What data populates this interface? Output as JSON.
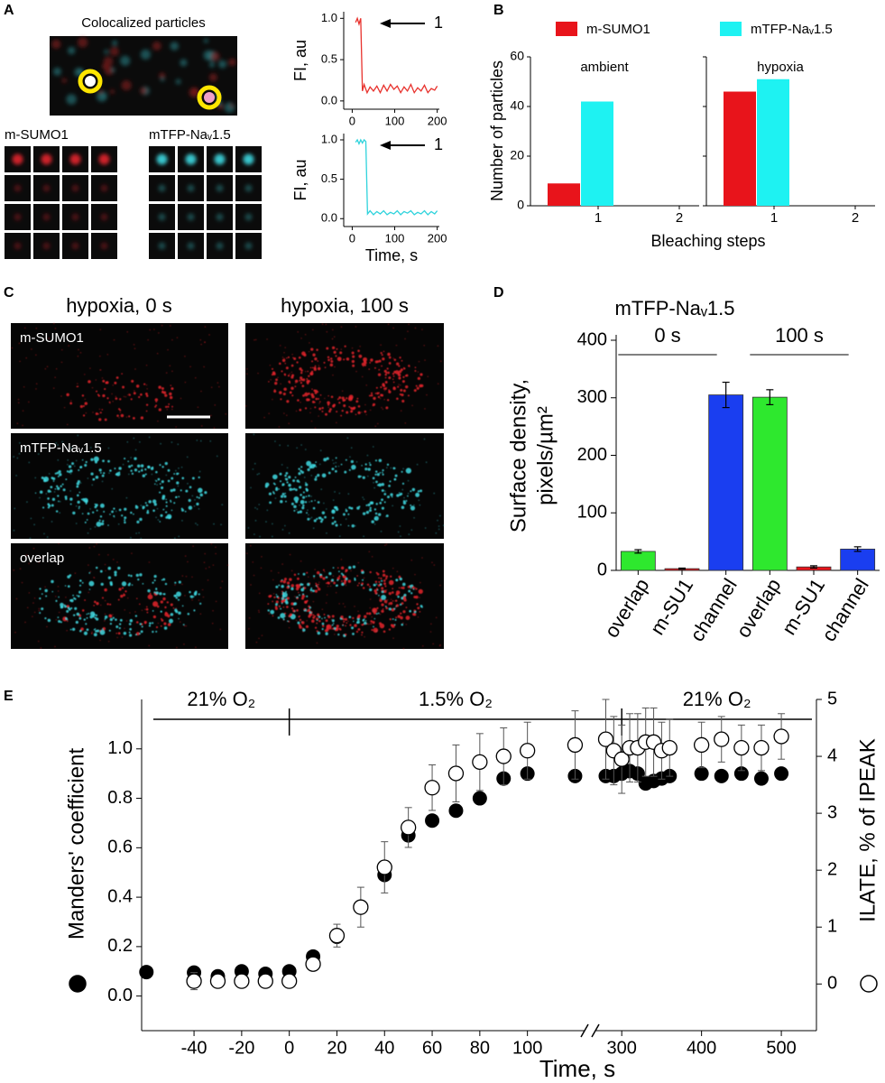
{
  "panel_labels": [
    "A",
    "B",
    "C",
    "D",
    "E"
  ],
  "images": {
    "colocalized_title": "Colocalized particles",
    "grid_labels": [
      "m-SUMO1",
      "mTFP-Naᵥ1.5"
    ],
    "c_columns": [
      "hypoxia, 0 s",
      "hypoxia, 100 s"
    ],
    "c_rows": [
      "m-SUMO1",
      "mTFP-Naᵥ1.5",
      "overlap"
    ]
  },
  "chart_data": [
    {
      "type": "line",
      "ylabel": "FI, au",
      "annotation": "1",
      "color": "#e8322d",
      "x": [
        8,
        12,
        16,
        20,
        24,
        28,
        35,
        42,
        50,
        58,
        66,
        74,
        82,
        90,
        98,
        106,
        114,
        122,
        130,
        138,
        146,
        154,
        162,
        170,
        178,
        186,
        194,
        200
      ],
      "values": [
        0.95,
        1.0,
        0.93,
        1.0,
        0.12,
        0.2,
        0.1,
        0.17,
        0.12,
        0.18,
        0.1,
        0.19,
        0.12,
        0.2,
        0.14,
        0.18,
        0.1,
        0.17,
        0.12,
        0.2,
        0.1,
        0.16,
        0.12,
        0.19,
        0.1,
        0.15,
        0.13,
        0.18
      ],
      "xlim": [
        -20,
        205
      ],
      "ylim": [
        -0.1,
        1.08
      ],
      "xticks": [
        0,
        100,
        200
      ],
      "yticks": [
        {
          "value": 0,
          "label": "0.0"
        },
        {
          "value": 0.5,
          "label": "0.5"
        },
        {
          "value": 1,
          "label": "1.0"
        }
      ]
    },
    {
      "type": "line",
      "ylabel": "FI, au",
      "xlabel": "Time, s",
      "annotation": "1",
      "color": "#2fd3dc",
      "x": [
        8,
        12,
        16,
        20,
        24,
        28,
        32,
        36,
        42,
        50,
        58,
        66,
        74,
        82,
        90,
        98,
        106,
        114,
        122,
        130,
        138,
        146,
        154,
        162,
        170,
        178,
        186,
        194,
        200
      ],
      "values": [
        0.97,
        1.0,
        0.95,
        1.0,
        0.96,
        1.0,
        0.98,
        0.06,
        0.1,
        0.05,
        0.09,
        0.06,
        0.1,
        0.05,
        0.08,
        0.06,
        0.1,
        0.05,
        0.09,
        0.07,
        0.1,
        0.05,
        0.08,
        0.06,
        0.1,
        0.05,
        0.09,
        0.06,
        0.1
      ],
      "xlim": [
        -20,
        205
      ],
      "ylim": [
        -0.1,
        1.08
      ],
      "xticks": [
        0,
        100,
        200
      ],
      "yticks": [
        {
          "value": 0,
          "label": "0.0"
        },
        {
          "value": 0.5,
          "label": "0.5"
        },
        {
          "value": 1,
          "label": "1.0"
        }
      ]
    },
    {
      "type": "grouped-bar",
      "ylabel": "Number of particles",
      "xlabel": "Bleaching steps",
      "panel_titles": [
        "ambient",
        "hypoxia"
      ],
      "categories": [
        "1",
        "2",
        "1",
        "2"
      ],
      "series": [
        {
          "name": "m-SUMO1",
          "color": "#e8141b",
          "values": [
            9,
            0,
            46,
            0
          ]
        },
        {
          "name": "mTFP-Naᵥ1.5",
          "color": "#1ef2f2",
          "values": [
            42,
            0,
            51,
            0
          ]
        }
      ],
      "ylim": [
        0,
        60
      ],
      "yticks": [
        0,
        20,
        40,
        60
      ]
    },
    {
      "type": "error-bar",
      "title": "mTFP-Naᵥ1.5",
      "ylabel": [
        "Surface density,",
        "pixels/µm²"
      ],
      "group_labels": [
        "0 s",
        "100 s"
      ],
      "categories": [
        "overlap",
        "m-SU1",
        "channel",
        "overlap",
        "m-SU1",
        "channel"
      ],
      "values": [
        33,
        3,
        305,
        301,
        6,
        37
      ],
      "errors": [
        3,
        1,
        22,
        13,
        2,
        4
      ],
      "colors": [
        "#2ee82e",
        "#e8141b",
        "#1a3ef0",
        "#2ee82e",
        "#e8141b",
        "#1a3ef0"
      ],
      "ylim": [
        0,
        400
      ],
      "yticks": [
        0,
        100,
        200,
        300,
        400
      ]
    },
    {
      "type": "scatter",
      "xlabel": "Time, s",
      "phases": [
        "21% O₂",
        "1.5% O₂",
        "21% O₂"
      ],
      "phase_bounds": [
        0,
        300
      ],
      "xlim": [
        -62,
        544
      ],
      "xbreak": [
        124,
        267
      ],
      "xticks": [
        -40,
        -20,
        0,
        20,
        40,
        60,
        80,
        100,
        300,
        400,
        500
      ],
      "ylim": [
        -0.14,
        1.2
      ],
      "yticks": [
        {
          "value": 0,
          "label": "0.0"
        },
        {
          "value": 0.2,
          "label": "0.2"
        },
        {
          "value": 0.4,
          "label": "0.4"
        },
        {
          "value": 0.6,
          "label": "0.6"
        },
        {
          "value": 0.8,
          "label": "0.8"
        },
        {
          "value": 1,
          "label": "1.0"
        }
      ],
      "y2lim": [
        -0.82,
        5
      ],
      "y2ticks": [
        0,
        1,
        2,
        3,
        4,
        5
      ],
      "series": [
        {
          "name": "Manders' coefficient",
          "marker": "filled",
          "color": "#000000",
          "x": [
            -60,
            -40,
            -30,
            -20,
            -10,
            0,
            10,
            20,
            40,
            50,
            60,
            70,
            80,
            90,
            100,
            120,
            280,
            290,
            300,
            310,
            320,
            330,
            340,
            350,
            360,
            400,
            425,
            450,
            475,
            500
          ],
          "values": [
            0.097,
            0.095,
            0.08,
            0.1,
            0.09,
            0.1,
            0.16,
            0.24,
            0.49,
            0.65,
            0.71,
            0.75,
            0.8,
            0.88,
            0.9,
            0.89,
            0.89,
            0.89,
            0.9,
            0.91,
            0.9,
            0.86,
            0.87,
            0.88,
            0.89,
            0.9,
            0.89,
            0.9,
            0.88,
            0.9
          ]
        },
        {
          "name": "ILATE, % of IPEAK",
          "marker": "open",
          "color": "#000000",
          "axis": "y2",
          "x": [
            -40,
            -30,
            -20,
            -10,
            0,
            10,
            20,
            30,
            40,
            50,
            60,
            70,
            80,
            90,
            100,
            120,
            280,
            290,
            300,
            310,
            320,
            330,
            340,
            350,
            360,
            400,
            425,
            450,
            475,
            500
          ],
          "values": [
            0.05,
            0.05,
            0.05,
            0.05,
            0.05,
            0.35,
            0.85,
            1.35,
            2.05,
            2.75,
            3.45,
            3.7,
            3.9,
            4.0,
            4.1,
            4.2,
            4.3,
            4.1,
            3.95,
            4.15,
            4.15,
            4.25,
            4.25,
            4.1,
            4.15,
            4.2,
            4.3,
            4.15,
            4.15,
            4.35
          ],
          "errors": [
            0.15,
            0.1,
            0.1,
            0.1,
            0.1,
            0.1,
            0.2,
            0.35,
            0.45,
            0.35,
            0.4,
            0.5,
            0.5,
            0.5,
            0.5,
            0.6,
            0.7,
            0.6,
            0.6,
            0.6,
            0.6,
            0.6,
            0.6,
            0.5,
            0.5,
            0.4,
            0.4,
            0.4,
            0.4,
            0.4
          ]
        }
      ]
    }
  ]
}
